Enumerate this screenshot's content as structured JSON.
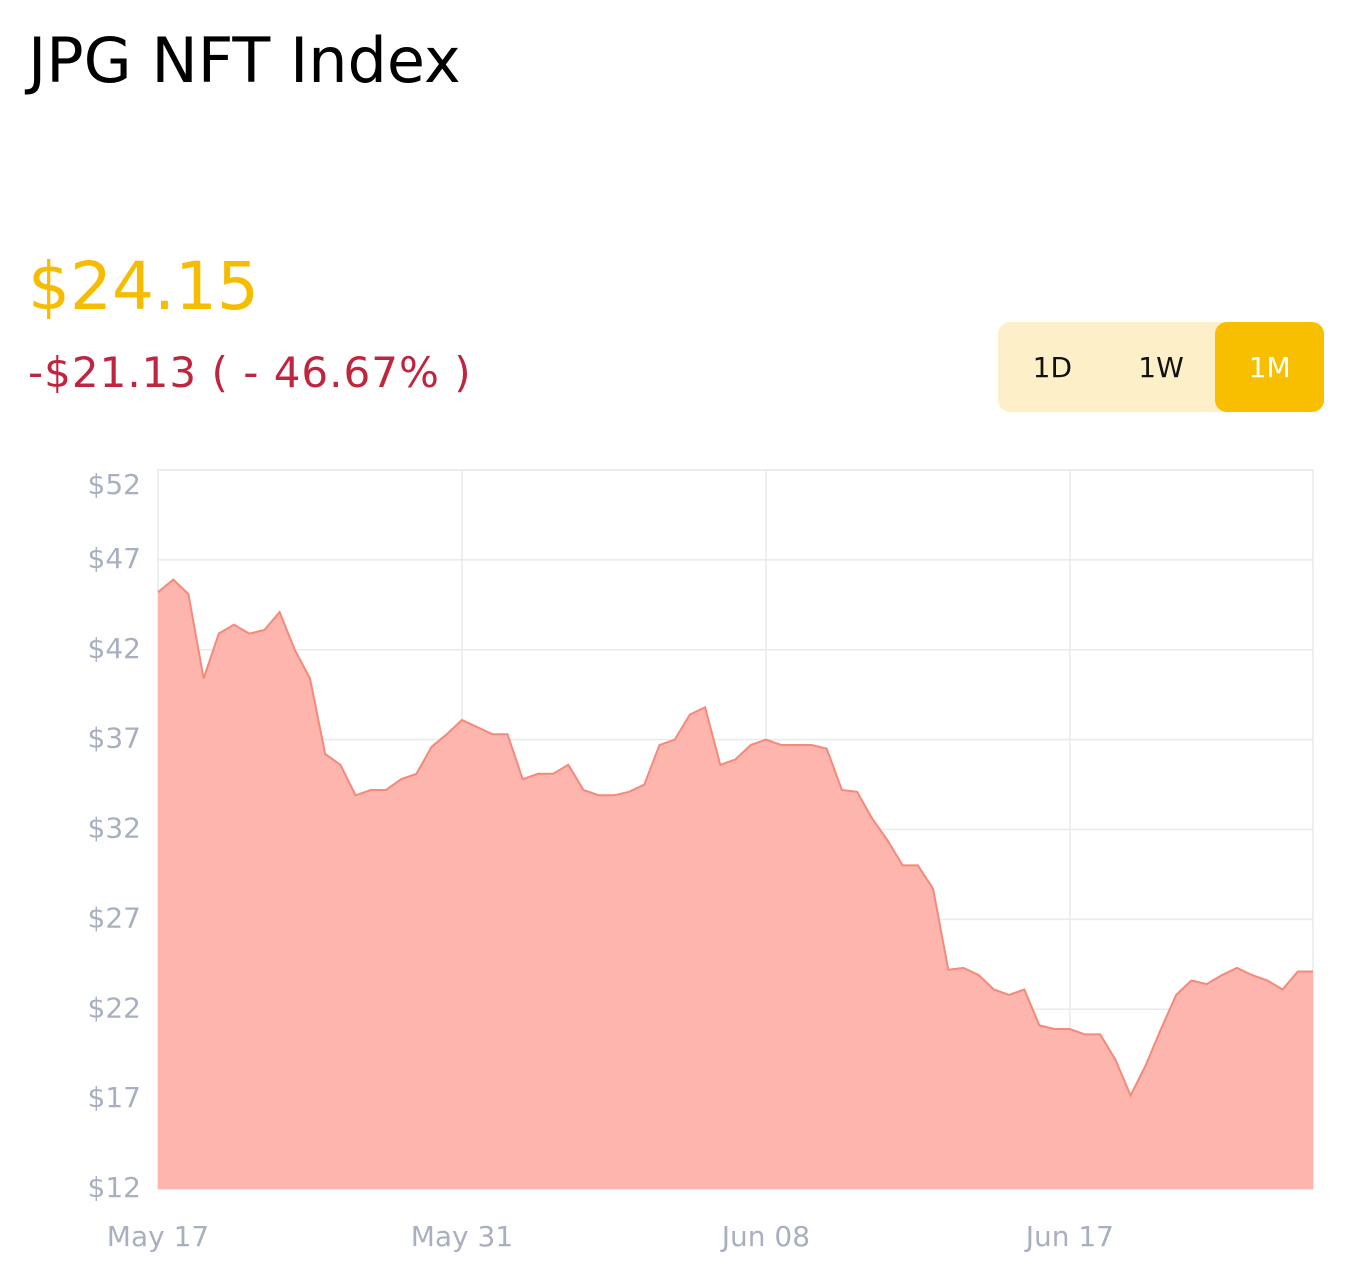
{
  "header": {
    "title": "JPG NFT Index",
    "price": "$24.15",
    "change": "-$21.13 ( - 46.67% )"
  },
  "range_buttons": {
    "labels": [
      "1D",
      "1W",
      "1M"
    ],
    "selected": 2
  },
  "chart_data": {
    "type": "area",
    "categories": [
      "May 17",
      null,
      null,
      null,
      null,
      null,
      null,
      null,
      null,
      null,
      null,
      null,
      null,
      null,
      null,
      null,
      null,
      null,
      null,
      null,
      "May 31",
      null,
      null,
      null,
      null,
      null,
      null,
      null,
      null,
      null,
      null,
      null,
      null,
      null,
      null,
      null,
      null,
      null,
      null,
      null,
      "Jun 08",
      null,
      null,
      null,
      null,
      null,
      null,
      null,
      null,
      null,
      null,
      null,
      null,
      null,
      null,
      null,
      null,
      null,
      null,
      null,
      "Jun 17",
      null,
      null,
      null,
      null,
      null,
      null,
      null,
      null,
      null,
      null,
      null,
      null,
      null,
      null,
      null,
      null
    ],
    "values": [
      45.2,
      45.9,
      45.1,
      40.4,
      42.9,
      43.4,
      42.9,
      43.1,
      44.1,
      42.0,
      40.4,
      36.2,
      35.6,
      33.9,
      34.2,
      34.2,
      34.8,
      35.1,
      36.6,
      37.3,
      38.1,
      37.7,
      37.3,
      37.3,
      34.8,
      35.1,
      35.1,
      35.6,
      34.2,
      33.9,
      33.9,
      34.1,
      34.5,
      36.7,
      37.0,
      38.4,
      38.8,
      35.6,
      35.9,
      36.7,
      37.0,
      36.7,
      36.7,
      36.7,
      36.5,
      34.2,
      34.1,
      32.6,
      31.4,
      30.0,
      30.0,
      28.7,
      24.2,
      24.3,
      23.9,
      23.1,
      22.8,
      23.1,
      21.1,
      20.9,
      20.9,
      20.6,
      20.6,
      19.2,
      17.2,
      18.9,
      20.9,
      22.8,
      23.6,
      23.4,
      23.9,
      24.3,
      23.9,
      23.6,
      23.1,
      24.1,
      24.1
    ],
    "color": "#f5897a",
    "fill": "#fdb5ae",
    "ylim": [
      12,
      52
    ],
    "yticks": [
      {
        "value": 12,
        "label": "$12"
      },
      {
        "value": 17,
        "label": "$17"
      },
      {
        "value": 22,
        "label": "$22"
      },
      {
        "value": 27,
        "label": "$27"
      },
      {
        "value": 32,
        "label": "$32"
      },
      {
        "value": 37,
        "label": "$37"
      },
      {
        "value": 42,
        "label": "$42"
      },
      {
        "value": 47,
        "label": "$47"
      },
      {
        "value": 52,
        "label": "$52"
      }
    ],
    "grid": true
  }
}
